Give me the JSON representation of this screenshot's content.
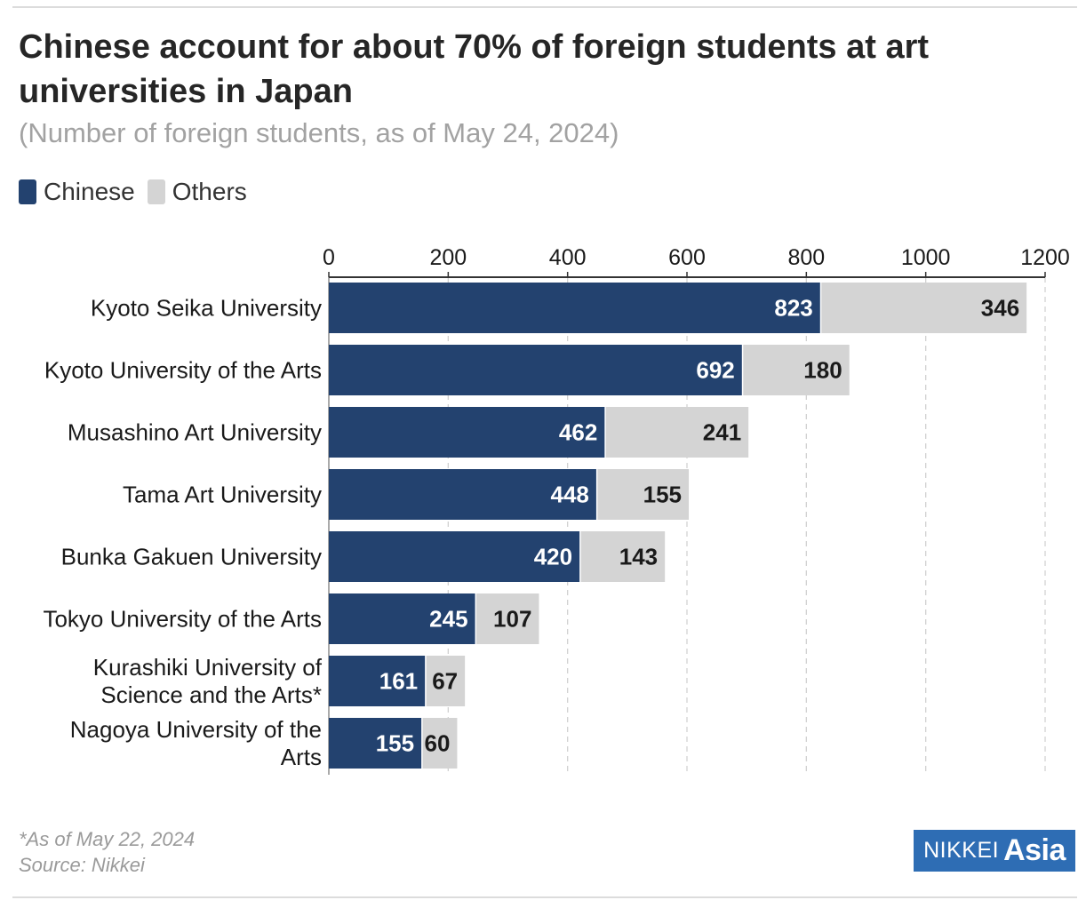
{
  "header": {
    "title": "Chinese account for about 70% of foreign students at art universities in Japan",
    "subtitle": "(Number of foreign students, as of May 24, 2024)"
  },
  "legend": [
    {
      "label": "Chinese",
      "color": "#23426f"
    },
    {
      "label": "Others",
      "color": "#d4d4d4"
    }
  ],
  "chart_data": {
    "type": "bar",
    "orientation": "horizontal",
    "stacked": true,
    "title": "Chinese account for about 70% of foreign students at art universities in Japan",
    "subtitle": "(Number of foreign students, as of May 24, 2024)",
    "categories": [
      [
        "Kyoto Seika University"
      ],
      [
        "Kyoto University of the Arts"
      ],
      [
        "Musashino Art University"
      ],
      [
        "Tama Art University"
      ],
      [
        "Bunka Gakuen University"
      ],
      [
        "Tokyo University of the Arts"
      ],
      [
        "Kurashiki University of",
        "Science and the Arts*"
      ],
      [
        "Nagoya University of the",
        "Arts"
      ]
    ],
    "series": [
      {
        "name": "Chinese",
        "color": "#23426f",
        "label_color": "#ffffff",
        "values": [
          823,
          692,
          462,
          448,
          420,
          245,
          161,
          155
        ]
      },
      {
        "name": "Others",
        "color": "#d4d4d4",
        "label_color": "#1a1a1a",
        "values": [
          346,
          180,
          241,
          155,
          143,
          107,
          67,
          60
        ]
      }
    ],
    "xlim": [
      0,
      1200
    ],
    "xticks": [
      0,
      200,
      400,
      600,
      800,
      1000,
      1200
    ],
    "axis_position": "top",
    "grid": true,
    "legend_position": "top-left"
  },
  "footer": {
    "note": "*As of May 22, 2024",
    "source": "Source: Nikkei",
    "logo_left": "NIKKEI",
    "logo_right": "Asia"
  }
}
